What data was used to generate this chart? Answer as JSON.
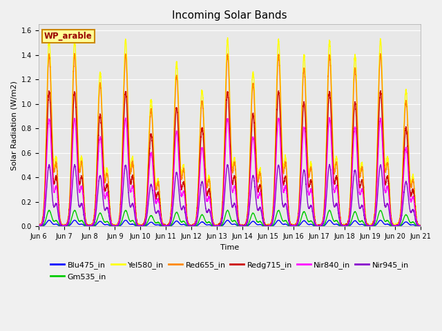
{
  "title": "Incoming Solar Bands",
  "xlabel": "Time",
  "ylabel": "Solar Radiation (W/m2)",
  "wp_label": "WP_arable",
  "ylim": [
    0,
    1.65
  ],
  "yticks": [
    0.0,
    0.2,
    0.4,
    0.6,
    0.8,
    1.0,
    1.2,
    1.4,
    1.6
  ],
  "date_labels": [
    "Jun 6",
    "Jun 7",
    "Jun 8",
    "Jun 9",
    "Jun 10",
    "Jun 11",
    "Jun 12",
    "Jun 13",
    "Jun 14",
    "Jun 15",
    "Jun 16",
    "Jun 17",
    "Jun 18",
    "Jun 19",
    "Jun 20",
    "Jun 21"
  ],
  "series": [
    {
      "name": "Blu475_in",
      "color": "#0000ff",
      "lw": 1.0,
      "peak": 0.05
    },
    {
      "name": "Gm535_in",
      "color": "#00cc00",
      "lw": 1.0,
      "peak": 0.13
    },
    {
      "name": "Yel580_in",
      "color": "#ffff00",
      "lw": 1.0,
      "peak": 1.52
    },
    {
      "name": "Red655_in",
      "color": "#ff8800",
      "lw": 1.0,
      "peak": 1.4
    },
    {
      "name": "Redg715_in",
      "color": "#cc0000",
      "lw": 1.0,
      "peak": 1.1
    },
    {
      "name": "Nir840_in",
      "color": "#ff00ff",
      "lw": 1.0,
      "peak": 0.88
    },
    {
      "name": "Nir945_in",
      "color": "#8800cc",
      "lw": 1.0,
      "peak": 0.5
    }
  ],
  "n_days": 15,
  "points_per_day": 300,
  "plot_bg": "#e8e8e8",
  "fig_bg": "#f0f0f0",
  "title_fontsize": 11,
  "label_fontsize": 8,
  "tick_fontsize": 7,
  "legend_fontsize": 8
}
